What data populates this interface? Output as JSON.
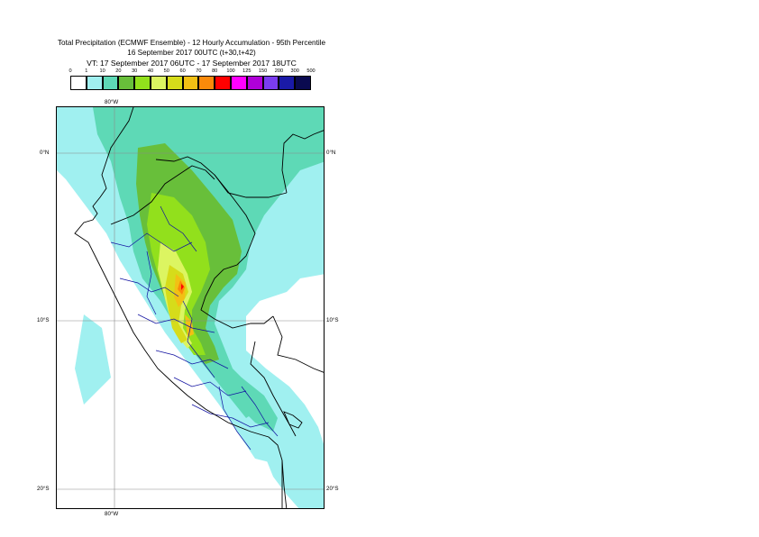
{
  "header": {
    "title": "Total Precipitation (ECMWF Ensemble) - 12 Hourly Accumulation - 95th Percentile",
    "base_time": "16 September 2017 00UTC (t+30,t+42)",
    "valid_time": "VT: 17 September 2017 06UTC - 17 September 2017 18UTC"
  },
  "legend": {
    "labels": [
      "0",
      "1",
      "10",
      "20",
      "30",
      "40",
      "50",
      "60",
      "70",
      "80",
      "100",
      "125",
      "150",
      "200",
      "300",
      "500"
    ],
    "colors": [
      "#ffffff",
      "#a0f0f0",
      "#5ed9b6",
      "#68bf3a",
      "#92e01c",
      "#dcf561",
      "#d6dc1a",
      "#f2c014",
      "#fa8a0a",
      "#ff0000",
      "#ff00ff",
      "#b000d8",
      "#7a3cf0",
      "#1a1aa8",
      "#0a0a50"
    ]
  },
  "axes": {
    "lon_top": "80°W",
    "lon_bottom": "80°W",
    "lat_0_left": "0°N",
    "lat_0_right": "0°N",
    "lat_10_left": "10°S",
    "lat_10_right": "10°S",
    "lat_20_left": "20°S",
    "lat_20_right": "20°S"
  },
  "map": {
    "region": "Peru / Ecuador",
    "coastline_color": "#000000",
    "admin_boundary_color": "#1010a0",
    "gridline_color": "#8a8a8a"
  }
}
